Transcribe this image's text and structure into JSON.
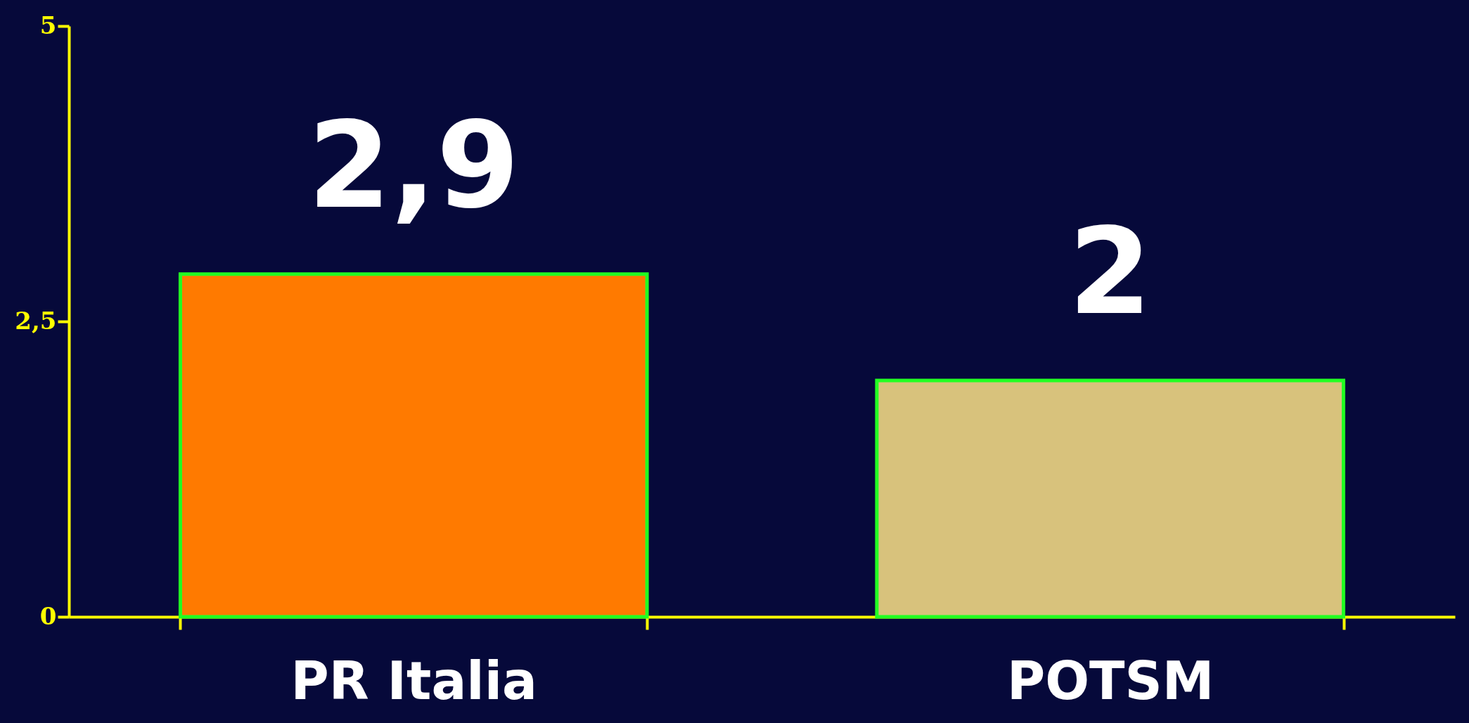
{
  "chart_data": {
    "type": "bar",
    "categories": [
      "PR Italia",
      "POTSM"
    ],
    "values": [
      2.9,
      2
    ],
    "value_labels": [
      "2,9",
      "2"
    ],
    "colors": [
      "#ff7a00",
      "#d8c27c"
    ],
    "ylim": [
      0,
      5
    ],
    "yticks": [
      0,
      {
        "value": 2.5,
        "label": "2,5"
      },
      5
    ],
    "grid": false
  }
}
